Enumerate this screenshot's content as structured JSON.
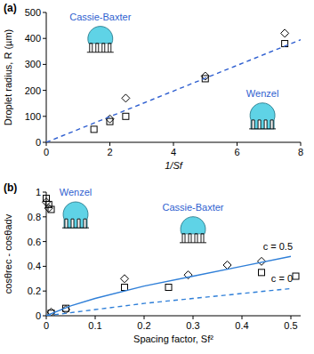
{
  "chart_data": [
    {
      "type": "scatter",
      "title": "(a)",
      "x_label": "1/Sf",
      "y_label": "Droplet radius, R (µm)",
      "xlim": [
        0,
        8
      ],
      "xticks": [
        0,
        2,
        4,
        6,
        8
      ],
      "ylim": [
        0,
        500
      ],
      "yticks": [
        0,
        100,
        200,
        300,
        400,
        500
      ],
      "series": [
        {
          "type": "scatter",
          "marker": "square",
          "color": "#000000",
          "x": [
            1.5,
            2,
            2.5,
            5,
            7.5
          ],
          "values": [
            50,
            80,
            100,
            245,
            380
          ]
        },
        {
          "type": "scatter",
          "marker": "diamond",
          "color": "#000000",
          "x": [
            2,
            2.5,
            5,
            7.5
          ],
          "values": [
            90,
            170,
            255,
            420
          ]
        },
        {
          "type": "line",
          "line_style": "dashed",
          "color": "#2f5fd0",
          "x": [
            0,
            8
          ],
          "values": [
            0,
            395
          ]
        }
      ],
      "annotations": [
        {
          "text": "Cassie-Baxter",
          "x": 1.7,
          "y": 470
        },
        {
          "text": "Wenzel",
          "x": 6.8,
          "y": 175
        }
      ]
    },
    {
      "type": "scatter",
      "title": "(b)",
      "x_label": "Spacing factor, Sf²",
      "y_label": "cosθrec - cosθadv",
      "xlim": [
        0,
        0.52
      ],
      "xticks": [
        0,
        0.1,
        0.2,
        0.3,
        0.4,
        0.5
      ],
      "ylim": [
        0,
        1
      ],
      "yticks": [
        0,
        0.2,
        0.4,
        0.6,
        0.8,
        1
      ],
      "series": [
        {
          "type": "scatter",
          "marker": "square",
          "color": "#000000",
          "x": [
            0,
            0.005,
            0.01,
            0.01,
            0.04,
            0.16,
            0.25,
            0.44,
            0.51
          ],
          "values": [
            0.95,
            0.9,
            0.86,
            0.02,
            0.06,
            0.23,
            0.23,
            0.35,
            0.32
          ]
        },
        {
          "type": "scatter",
          "marker": "diamond",
          "color": "#000000",
          "x": [
            0,
            0.005,
            0.01,
            0.04,
            0.16,
            0.29,
            0.37,
            0.44
          ],
          "values": [
            0.92,
            0.87,
            0.03,
            0.05,
            0.3,
            0.33,
            0.41,
            0.44
          ]
        },
        {
          "type": "line",
          "name": "c = 0.5",
          "line_style": "solid",
          "color": "#2f7fd8",
          "x": [
            0,
            0.05,
            0.1,
            0.2,
            0.3,
            0.4,
            0.5
          ],
          "values": [
            0,
            0.08,
            0.14,
            0.24,
            0.32,
            0.4,
            0.48
          ]
        },
        {
          "type": "line",
          "name": "c = 0",
          "line_style": "dashed",
          "color": "#2f7fd8",
          "x": [
            0,
            0.1,
            0.2,
            0.3,
            0.4,
            0.5
          ],
          "values": [
            0,
            0.05,
            0.1,
            0.14,
            0.18,
            0.22
          ]
        }
      ],
      "annotations": [
        {
          "text": "Wenzel",
          "x": 0.06,
          "y": 0.97
        },
        {
          "text": "Cassie-Baxter",
          "x": 0.3,
          "y": 0.85
        }
      ]
    }
  ]
}
